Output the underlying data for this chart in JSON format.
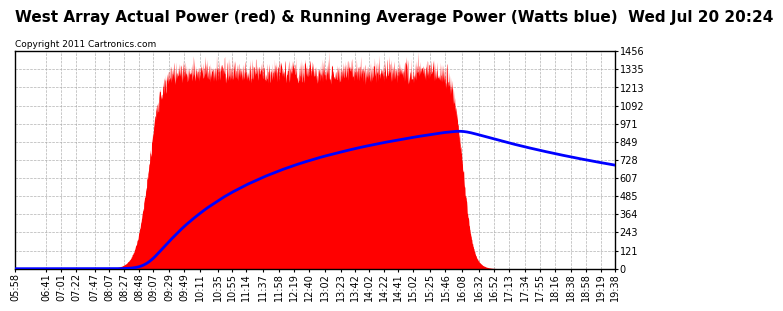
{
  "title": "West Array Actual Power (red) & Running Average Power (Watts blue)  Wed Jul 20 20:24",
  "copyright": "Copyright 2011 Cartronics.com",
  "ylim": [
    0.0,
    1456.1
  ],
  "yticks": [
    0.0,
    121.3,
    242.7,
    364.0,
    485.4,
    606.7,
    728.1,
    849.4,
    970.7,
    1092.1,
    1213.4,
    1334.8,
    1456.1
  ],
  "bg_color": "#ffffff",
  "plot_bg_color": "#ffffff",
  "actual_color": "red",
  "avg_color": "blue",
  "grid_color": "#aaaaaa",
  "title_fontsize": 11,
  "tick_fontsize": 7,
  "xtick_labels": [
    "05:58",
    "06:41",
    "07:01",
    "07:22",
    "07:47",
    "08:07",
    "08:27",
    "08:48",
    "09:07",
    "09:29",
    "09:49",
    "10:11",
    "10:35",
    "10:55",
    "11:14",
    "11:37",
    "11:58",
    "12:19",
    "12:40",
    "13:02",
    "13:23",
    "13:42",
    "14:02",
    "14:22",
    "14:41",
    "15:02",
    "15:25",
    "15:46",
    "16:08",
    "16:32",
    "16:52",
    "17:13",
    "17:34",
    "17:55",
    "18:16",
    "18:38",
    "18:58",
    "19:19",
    "19:38"
  ]
}
